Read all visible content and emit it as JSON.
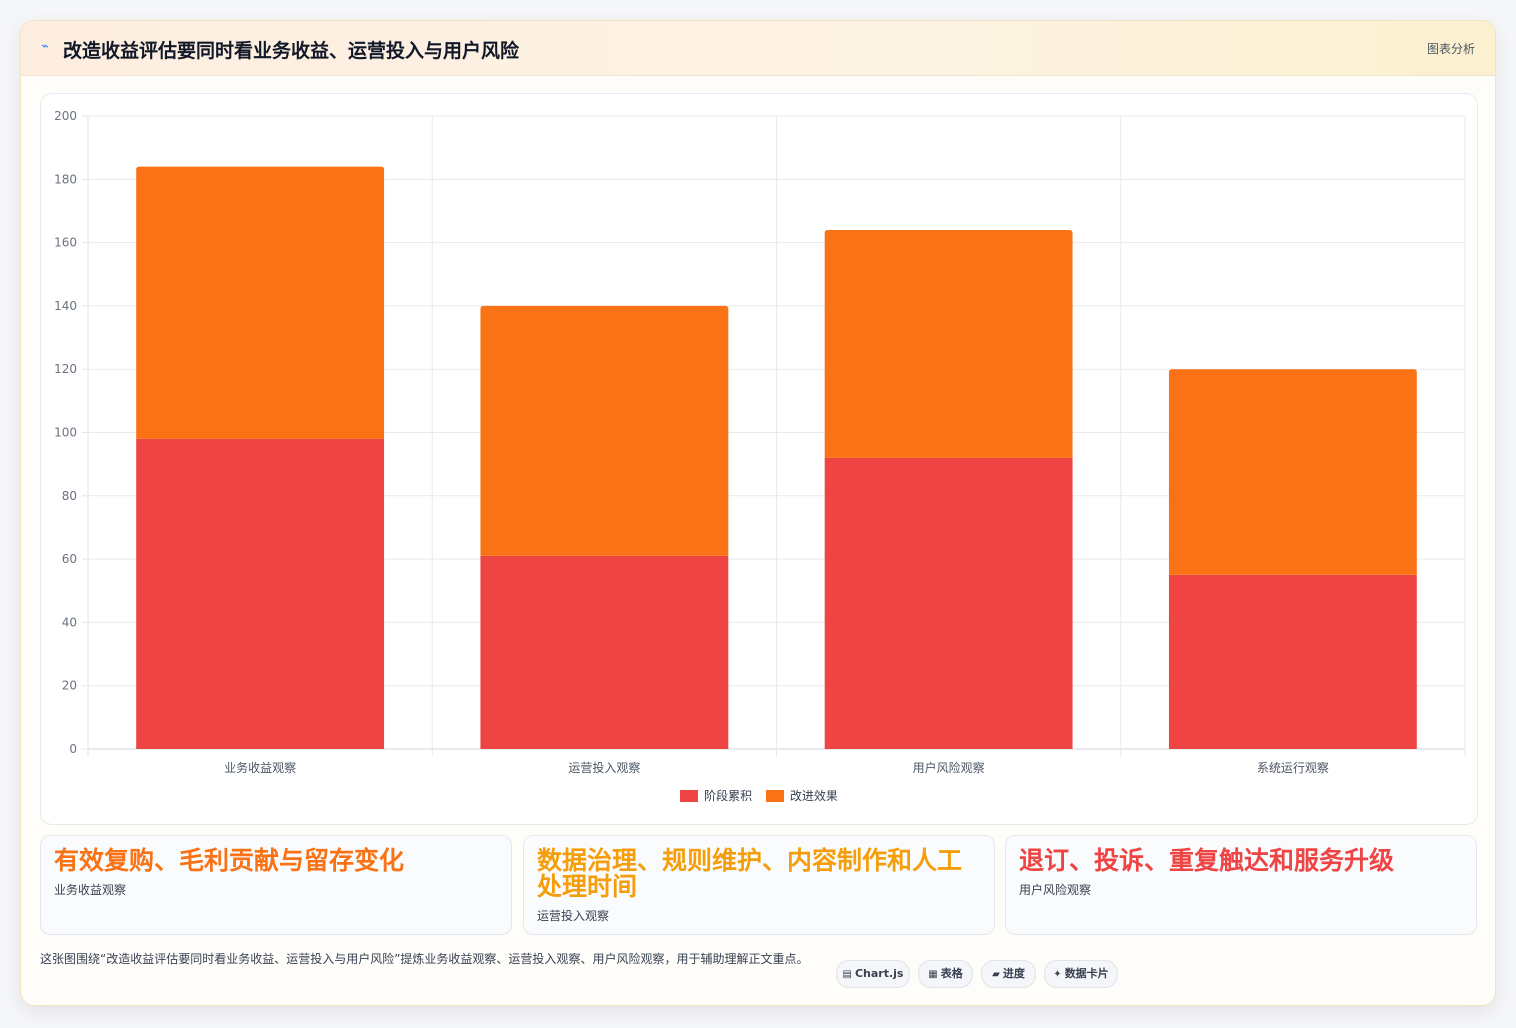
{
  "header": {
    "icon": "sparkline-icon",
    "title": "改造收益评估要同时看业务收益、运营投入与用户风险",
    "tag": "图表分析"
  },
  "chart_data": {
    "type": "bar",
    "stacked": true,
    "categories": [
      "业务收益观察",
      "运营投入观察",
      "用户风险观察",
      "系统运行观察"
    ],
    "series": [
      {
        "name": "阶段累积",
        "values": [
          98,
          61,
          92,
          55
        ],
        "color": "#ef4444"
      },
      {
        "name": "改进效果",
        "values": [
          86,
          79,
          72,
          65
        ],
        "color": "#f97316"
      }
    ],
    "ylim": [
      0,
      200
    ],
    "yticks": [
      0,
      20,
      40,
      60,
      80,
      100,
      120,
      140,
      160,
      180,
      200
    ],
    "grid": true,
    "legend": "bottom"
  },
  "cards": [
    {
      "big": "有效复购、毛利贡献与留存变化",
      "sub": "业务收益观察",
      "color": "#f97316"
    },
    {
      "big": "数据治理、规则维护、内容制作和人工处理时间",
      "sub": "运营投入观察",
      "color": "#f59e0b"
    },
    {
      "big": "退订、投诉、重复触达和服务升级",
      "sub": "用户风险观察",
      "color": "#ef4444"
    }
  ],
  "description": "这张图围绕“改造收益评估要同时看业务收益、运营投入与用户风险”提炼业务收益观察、运营投入观察、用户风险观察，用于辅助理解正文重点。",
  "chips": [
    {
      "icon": "chart-icon",
      "glyph": "▤",
      "label": "Chart.js"
    },
    {
      "icon": "table-icon",
      "glyph": "▦",
      "label": "表格"
    },
    {
      "icon": "progress-icon",
      "glyph": "▰",
      "label": "进度"
    },
    {
      "icon": "sparkle-icon",
      "glyph": "✦",
      "label": "数据卡片"
    }
  ]
}
